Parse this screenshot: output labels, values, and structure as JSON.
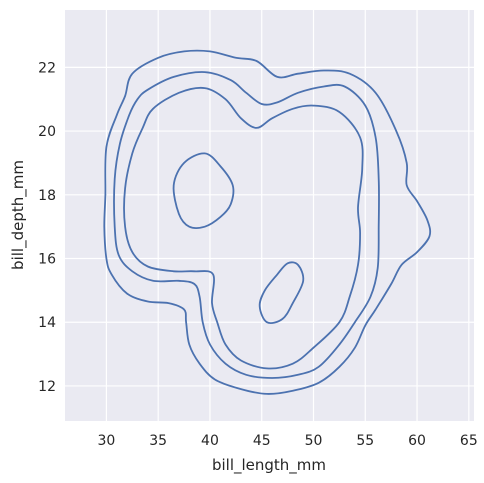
{
  "chart_data": {
    "type": "kde-contour",
    "xlabel": "bill_length_mm",
    "ylabel": "bill_depth_mm",
    "xlim": [
      26,
      65.5
    ],
    "ylim": [
      10.9,
      23.8
    ],
    "xticks": [
      30,
      35,
      40,
      45,
      50,
      55,
      60,
      65
    ],
    "yticks": [
      12,
      14,
      16,
      18,
      20,
      22
    ],
    "grid": true,
    "line_color": "#4c72b0",
    "background_color": "#eaeaf2",
    "contours": [
      {
        "name": "",
        "points": [
          [
            32.5,
            21.8
          ],
          [
            35,
            22.3
          ],
          [
            37.5,
            22.5
          ],
          [
            40,
            22.5
          ],
          [
            42.5,
            22.3
          ],
          [
            44.5,
            22.2
          ],
          [
            46.5,
            21.7
          ],
          [
            48.5,
            21.8
          ],
          [
            51,
            21.9
          ],
          [
            53.5,
            21.8
          ],
          [
            56,
            21.2
          ],
          [
            58,
            20.0
          ],
          [
            59,
            19.0
          ],
          [
            59,
            18.3
          ],
          [
            60,
            17.8
          ],
          [
            61,
            17.2
          ],
          [
            61.2,
            16.7
          ],
          [
            60,
            16.2
          ],
          [
            58.5,
            15.8
          ],
          [
            57.5,
            15.2
          ],
          [
            56,
            14.4
          ],
          [
            55,
            13.9
          ],
          [
            54,
            13.2
          ],
          [
            52.5,
            12.6
          ],
          [
            50.5,
            12.1
          ],
          [
            48,
            11.85
          ],
          [
            45.5,
            11.75
          ],
          [
            43,
            11.9
          ],
          [
            40.5,
            12.2
          ],
          [
            39,
            12.7
          ],
          [
            38,
            13.3
          ],
          [
            37.7,
            14.0
          ],
          [
            37.5,
            14.4
          ],
          [
            36,
            14.6
          ],
          [
            34,
            14.65
          ],
          [
            32,
            14.9
          ],
          [
            30.5,
            15.5
          ],
          [
            30,
            16.0
          ],
          [
            29.8,
            17.0
          ],
          [
            29.9,
            18.0
          ],
          [
            30,
            19.5
          ],
          [
            31,
            20.5
          ],
          [
            31.8,
            21.1
          ]
        ]
      },
      {
        "name": "",
        "points": [
          [
            34,
            21.3
          ],
          [
            36.5,
            21.7
          ],
          [
            39.5,
            21.85
          ],
          [
            42,
            21.6
          ],
          [
            43.5,
            21.2
          ],
          [
            45,
            20.85
          ],
          [
            46.5,
            20.9
          ],
          [
            48.5,
            21.2
          ],
          [
            51,
            21.4
          ],
          [
            53,
            21.4
          ],
          [
            55,
            20.8
          ],
          [
            56,
            19.8
          ],
          [
            56.3,
            18.5
          ],
          [
            56.3,
            17.0
          ],
          [
            56.2,
            15.7
          ],
          [
            55.5,
            14.8
          ],
          [
            54,
            14.0
          ],
          [
            52.5,
            13.3
          ],
          [
            50.5,
            12.6
          ],
          [
            48.5,
            12.35
          ],
          [
            46,
            12.25
          ],
          [
            43.5,
            12.35
          ],
          [
            41.5,
            12.7
          ],
          [
            40,
            13.3
          ],
          [
            39.3,
            14.0
          ],
          [
            39,
            14.8
          ],
          [
            38.5,
            15.2
          ],
          [
            37,
            15.3
          ],
          [
            34.5,
            15.3
          ],
          [
            32.5,
            15.6
          ],
          [
            31.2,
            16.1
          ],
          [
            30.8,
            17.0
          ],
          [
            30.8,
            18.5
          ],
          [
            31.3,
            19.6
          ],
          [
            32.2,
            20.5
          ],
          [
            33,
            21.0
          ]
        ]
      },
      {
        "name": "",
        "points": [
          [
            34.5,
            20.7
          ],
          [
            37,
            21.2
          ],
          [
            39.5,
            21.35
          ],
          [
            41.5,
            21.0
          ],
          [
            43,
            20.4
          ],
          [
            44.5,
            20.1
          ],
          [
            46,
            20.4
          ],
          [
            48,
            20.7
          ],
          [
            50,
            20.8
          ],
          [
            52.5,
            20.6
          ],
          [
            54.5,
            19.8
          ],
          [
            54.7,
            18.8
          ],
          [
            54.3,
            17.6
          ],
          [
            54.5,
            16.8
          ],
          [
            54.3,
            15.8
          ],
          [
            53.5,
            14.8
          ],
          [
            52.5,
            14.0
          ],
          [
            50,
            13.2
          ],
          [
            48,
            12.7
          ],
          [
            45.5,
            12.55
          ],
          [
            43,
            12.8
          ],
          [
            41.5,
            13.3
          ],
          [
            40.7,
            14.0
          ],
          [
            40.2,
            14.6
          ],
          [
            40.3,
            15.5
          ],
          [
            38.5,
            15.6
          ],
          [
            36.5,
            15.6
          ],
          [
            34,
            15.75
          ],
          [
            32.5,
            16.2
          ],
          [
            31.8,
            17.0
          ],
          [
            31.8,
            18.2
          ],
          [
            32.5,
            19.3
          ],
          [
            33.5,
            20.1
          ]
        ]
      },
      {
        "name": "",
        "points": [
          [
            39.5,
            19.3
          ],
          [
            41,
            18.9
          ],
          [
            42.2,
            18.3
          ],
          [
            42,
            17.7
          ],
          [
            41,
            17.3
          ],
          [
            39.5,
            17.0
          ],
          [
            38,
            17.0
          ],
          [
            37,
            17.4
          ],
          [
            36.5,
            18.3
          ],
          [
            37.5,
            19.0
          ]
        ]
      },
      {
        "name": "",
        "points": [
          [
            48.5,
            15.8
          ],
          [
            49,
            15.3
          ],
          [
            48,
            14.6
          ],
          [
            47,
            14.1
          ],
          [
            45.5,
            14.0
          ],
          [
            44.8,
            14.5
          ],
          [
            45.3,
            15.0
          ],
          [
            46.5,
            15.5
          ],
          [
            47.5,
            15.85
          ]
        ]
      }
    ]
  }
}
